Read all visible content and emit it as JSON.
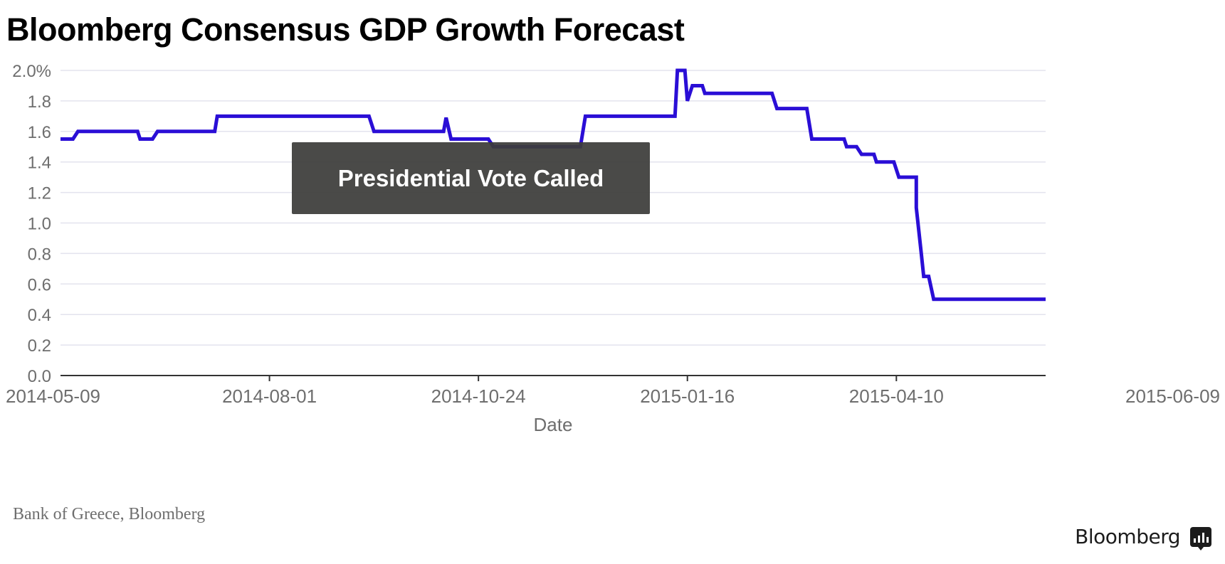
{
  "header": {
    "title": "Bloomberg Consensus GDP Growth Forecast"
  },
  "chart_data": {
    "type": "line",
    "title": "Bloomberg Consensus GDP Growth Forecast",
    "xlabel": "Date",
    "ylabel": "",
    "x_type": "date",
    "xlim": [
      "2014-05-09",
      "2015-06-09"
    ],
    "ylim": [
      0,
      2.0
    ],
    "y_ticks": [
      0.0,
      0.2,
      0.4,
      0.6,
      0.8,
      1.0,
      1.2,
      1.4,
      1.6,
      1.8,
      2.0
    ],
    "y_tick_labels": [
      "0.0",
      "0.2",
      "0.4",
      "0.6",
      "0.8",
      "1.0",
      "1.2",
      "1.4",
      "1.6",
      "1.8",
      "2.0%"
    ],
    "x_ticks": [
      "2014-05-09",
      "2014-08-01",
      "2014-10-24",
      "2015-01-16",
      "2015-04-10",
      "2015-06-09"
    ],
    "grid": true,
    "legend": "none",
    "series": [
      {
        "name": "Bloomberg Consensus GDP Growth Forecast",
        "color": "#2a0ed6",
        "x": [
          "2014-05-09",
          "2014-05-14",
          "2014-05-16",
          "2014-06-09",
          "2014-06-10",
          "2014-06-15",
          "2014-06-17",
          "2014-07-10",
          "2014-07-11",
          "2014-09-10",
          "2014-09-12",
          "2014-10-10",
          "2014-10-11",
          "2014-10-13",
          "2014-10-28",
          "2014-10-30",
          "2014-12-04",
          "2014-12-06",
          "2015-01-11",
          "2015-01-12",
          "2015-01-15",
          "2015-01-16",
          "2015-01-18",
          "2015-01-22",
          "2015-01-23",
          "2015-02-19",
          "2015-02-21",
          "2015-03-05",
          "2015-03-07",
          "2015-03-20",
          "2015-03-21",
          "2015-03-25",
          "2015-03-27",
          "2015-04-01",
          "2015-04-02",
          "2015-04-09",
          "2015-04-11",
          "2015-04-18",
          "2015-04-18",
          "2015-04-20",
          "2015-04-21",
          "2015-04-23",
          "2015-04-25",
          "2015-06-09"
        ],
        "y": [
          1.55,
          1.55,
          1.6,
          1.6,
          1.55,
          1.55,
          1.6,
          1.6,
          1.7,
          1.7,
          1.6,
          1.6,
          1.69,
          1.55,
          1.55,
          1.5,
          1.5,
          1.7,
          1.7,
          2.0,
          2.0,
          1.8,
          1.9,
          1.9,
          1.85,
          1.85,
          1.75,
          1.75,
          1.55,
          1.55,
          1.5,
          1.5,
          1.45,
          1.45,
          1.4,
          1.4,
          1.3,
          1.3,
          1.1,
          0.8,
          0.65,
          0.65,
          0.5,
          0.5
        ]
      }
    ],
    "annotations": [
      {
        "text": "Presidential Vote Called",
        "x": "2014-12-06"
      }
    ],
    "source": "Bank of Greece, Bloomberg"
  },
  "footer": {
    "source": "Bank of Greece, Bloomberg",
    "brand": "Bloomberg",
    "brand_icon": "bloomberg-logo-icon"
  }
}
